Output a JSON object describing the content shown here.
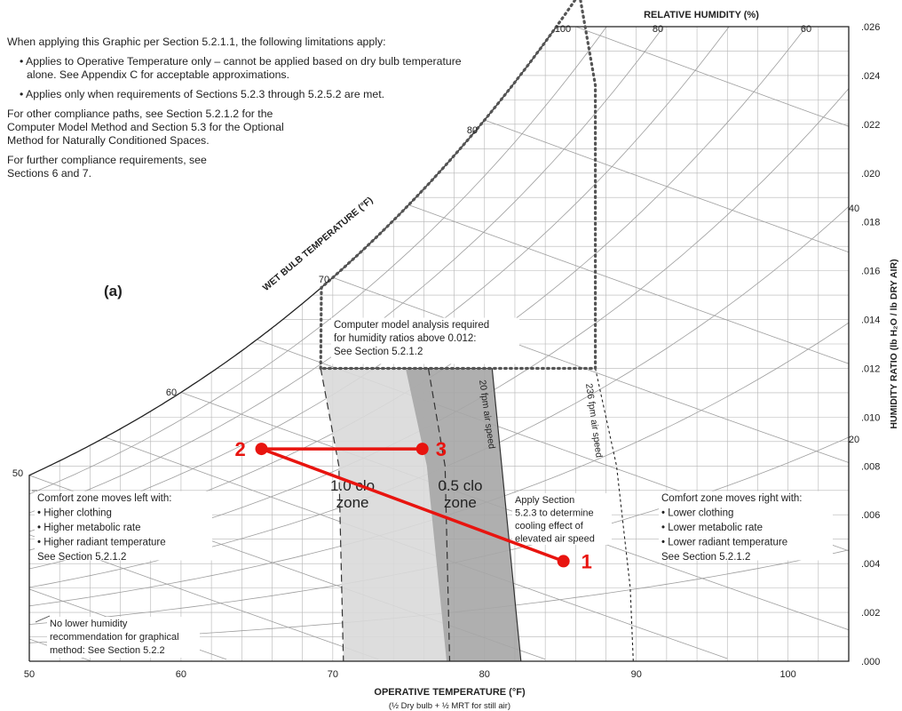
{
  "notes": {
    "intro": "When applying this Graphic per Section 5.2.1.1, the following limitations apply:",
    "bullet1": "Applies to Operative Temperature only – cannot be applied based on dry bulb temperature alone. See Appendix C for acceptable approximations.",
    "bullet2": "Applies only when requirements of Sections 5.2.3 through 5.2.5.2 are met.",
    "other": "For other compliance paths, see Section 5.2.1.2 for the Computer Model Method and Section 5.3 for the Optional Method for Naturally Conditioned Spaces.",
    "further": "For further compliance requirements, see Sections 6 and 7."
  },
  "chart_data": {
    "type": "scatter",
    "title": "",
    "panel_label": "(a)",
    "xlabel": "OPERATIVE TEMPERATURE   (°F)",
    "xlabel_sub": "(½ Dry bulb + ½ MRT for still air)",
    "ylabel": "HUMIDITY RATIO   (lb H₂O / lb DRY AIR)",
    "top_label": "RELATIVE HUMIDITY   (%)",
    "wet_bulb_label": "WET BULB TEMPERATURE   (°F)",
    "xlim": [
      50,
      104
    ],
    "ylim": [
      0,
      0.026
    ],
    "x_ticks": [
      "50",
      "60",
      "70",
      "80",
      "90",
      "100"
    ],
    "y_ticks": [
      ".000",
      ".002",
      ".004",
      ".006",
      ".008",
      ".010",
      ".012",
      ".014",
      ".016",
      ".018",
      ".020",
      ".022",
      ".024",
      ".026"
    ],
    "rh_labels": [
      "100",
      "80",
      "60",
      "40",
      "20"
    ],
    "wet_bulb_labels": [
      "50",
      "60",
      "70",
      "80"
    ],
    "zones": [
      {
        "name": "1.0 clo zone",
        "label": "1.0 clo\nzone",
        "color": "#d9d9d9"
      },
      {
        "name": "0.5 clo zone",
        "label": "0.5 clo\nzone",
        "color": "#a6a6a6"
      }
    ],
    "air_speed_labels": [
      "20 fpm air speed",
      "236 fpm air speed"
    ],
    "humidity_limit": 0.012,
    "annotations": {
      "computer_model": "Computer model analysis required\nfor humidity ratios above 0.012:\nSee Section 5.2.1.2",
      "elevated_air": "Apply Section\n5.2.3 to determine\ncooling effect of\nelevated air speed",
      "left": "Comfort zone moves left with:\n• Higher clothing\n• Higher metabolic rate\n• Higher radiant temperature\nSee Section 5.2.1.2",
      "right": "Comfort zone moves right with:\n• Lower clothing\n• Lower metabolic rate\n• Lower radiant temperature\nSee Section 5.2.1.2",
      "no_lower": "No lower humidity\nrecommendation for graphical\nmethod: See Section 5.2.2"
    },
    "process_color": "#e8140f",
    "points": [
      {
        "label": "1",
        "x": 85.2,
        "y": 0.0041
      },
      {
        "label": "2",
        "x": 65.3,
        "y": 0.0087
      },
      {
        "label": "3",
        "x": 75.9,
        "y": 0.0087
      }
    ],
    "segments": [
      [
        "1",
        "2"
      ],
      [
        "2",
        "3"
      ]
    ]
  }
}
